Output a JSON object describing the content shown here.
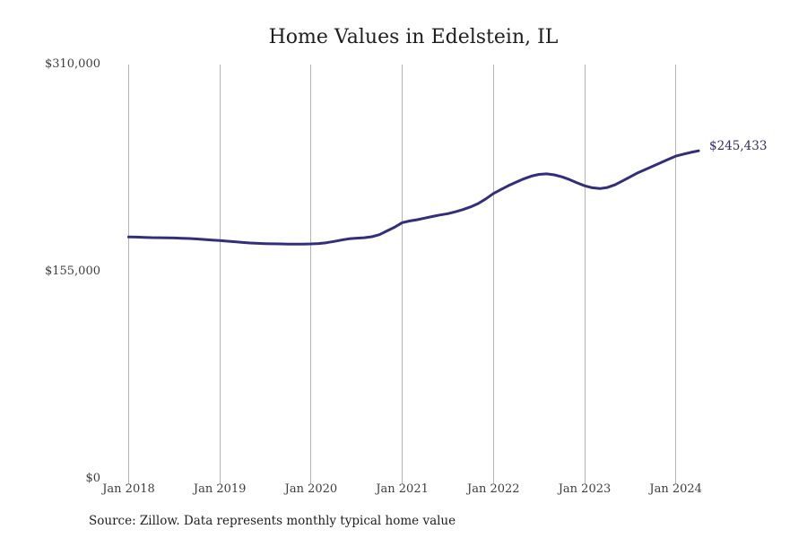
{
  "chart_data": {
    "type": "line",
    "title": "Home Values in Edelstein, IL",
    "end_label": "$245,433",
    "latest_value": 245433,
    "source_note": "Source: Zillow. Data represents monthly typical home value",
    "x_tick_labels": [
      "Jan 2018",
      "Jan 2019",
      "Jan 2020",
      "Jan 2021",
      "Jan 2022",
      "Jan 2023",
      "Jan 2024"
    ],
    "y_tick_labels": [
      "$0",
      "$155,000",
      "$310,000"
    ],
    "y_ticks": [
      0,
      155000,
      310000
    ],
    "ylim": [
      0,
      310000
    ],
    "grid": "vertical-only",
    "legend": "none",
    "line_color": "#312e81",
    "end_label_color": "#2e2c6e",
    "grid_color": "#b4b4b4",
    "months": [
      "2018-01",
      "2018-02",
      "2018-03",
      "2018-04",
      "2018-05",
      "2018-06",
      "2018-07",
      "2018-08",
      "2018-09",
      "2018-10",
      "2018-11",
      "2018-12",
      "2019-01",
      "2019-02",
      "2019-03",
      "2019-04",
      "2019-05",
      "2019-06",
      "2019-07",
      "2019-08",
      "2019-09",
      "2019-10",
      "2019-11",
      "2019-12",
      "2020-01",
      "2020-02",
      "2020-03",
      "2020-04",
      "2020-05",
      "2020-06",
      "2020-07",
      "2020-08",
      "2020-09",
      "2020-10",
      "2020-11",
      "2020-12",
      "2021-01",
      "2021-02",
      "2021-03",
      "2021-04",
      "2021-05",
      "2021-06",
      "2021-07",
      "2021-08",
      "2021-09",
      "2021-10",
      "2021-11",
      "2021-12",
      "2022-01",
      "2022-02",
      "2022-03",
      "2022-04",
      "2022-05",
      "2022-06",
      "2022-07",
      "2022-08",
      "2022-09",
      "2022-10",
      "2022-11",
      "2022-12",
      "2023-01",
      "2023-02",
      "2023-03",
      "2023-04",
      "2023-05",
      "2023-06",
      "2023-07",
      "2023-08",
      "2023-09",
      "2023-10",
      "2023-11",
      "2023-12",
      "2024-01",
      "2024-02",
      "2024-03",
      "2024-04"
    ],
    "series": [
      {
        "name": "Monthly typical home value",
        "values": [
          181000,
          180900,
          180700,
          180500,
          180400,
          180300,
          180200,
          180000,
          179800,
          179500,
          179100,
          178700,
          178300,
          177800,
          177400,
          176900,
          176500,
          176200,
          176000,
          175900,
          175800,
          175700,
          175700,
          175700,
          175800,
          176100,
          176700,
          177600,
          178700,
          179600,
          180100,
          180400,
          181200,
          182700,
          185500,
          188300,
          191700,
          193000,
          193900,
          195100,
          196300,
          197500,
          198400,
          199800,
          201500,
          203500,
          206000,
          209500,
          213500,
          216500,
          219500,
          222000,
          224500,
          226500,
          227800,
          228200,
          227500,
          226000,
          224000,
          221500,
          219300,
          217800,
          217200,
          218000,
          220000,
          223000,
          226000,
          229000,
          231500,
          234000,
          236500,
          239000,
          241500,
          243000,
          244300,
          245433
        ]
      }
    ]
  }
}
